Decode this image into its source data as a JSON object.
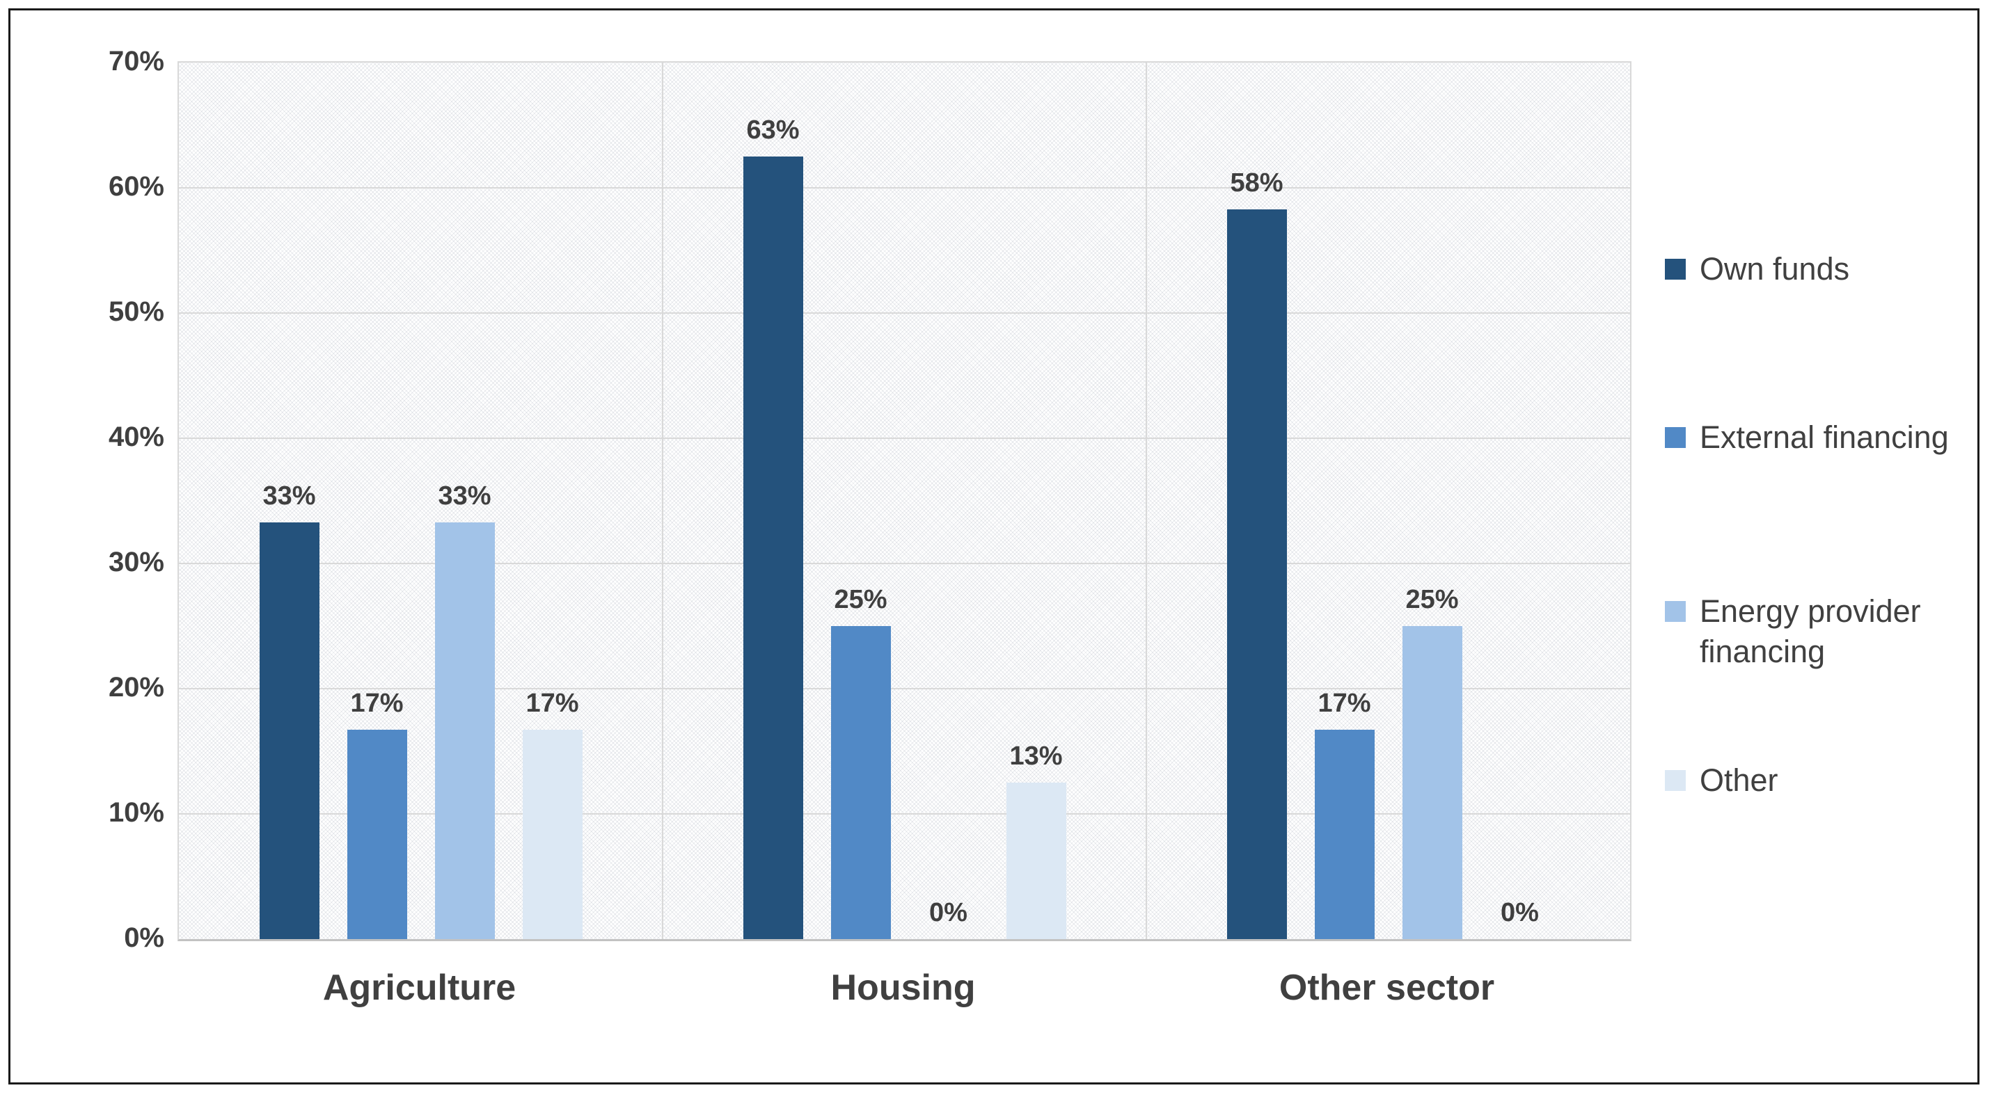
{
  "chart_data": {
    "type": "bar",
    "title": "",
    "categories": [
      "Agriculture",
      "Housing",
      "Other sector"
    ],
    "series": [
      {
        "name": "Own funds",
        "color": "#24527c",
        "values": [
          33.3,
          62.5,
          58.3
        ],
        "labels": [
          "33%",
          "63%",
          "58%"
        ]
      },
      {
        "name": "External financing",
        "color": "#5189c6",
        "values": [
          16.7,
          25.0,
          16.7
        ],
        "labels": [
          "17%",
          "25%",
          "17%"
        ]
      },
      {
        "name": "Energy provider financing",
        "color": "#a2c3e8",
        "values": [
          33.3,
          0.0,
          25.0
        ],
        "labels": [
          "33%",
          "0%",
          "25%"
        ]
      },
      {
        "name": "Other",
        "color": "#dce8f4",
        "values": [
          16.7,
          12.5,
          0.0
        ],
        "labels": [
          "17%",
          "13%",
          "0%"
        ]
      }
    ],
    "y_ticks": [
      "0%",
      "10%",
      "20%",
      "30%",
      "40%",
      "50%",
      "60%",
      "70%"
    ],
    "ylim": [
      0,
      70
    ],
    "y_tick_step": 10,
    "grid": true,
    "legend_position": "right",
    "plot_background": "diagonal-hatch"
  },
  "colors": {
    "gridline": "#d9d9d9",
    "axis_line": "#c2c2c2",
    "tick_label": "#3f3f3f",
    "data_label": "#3f3f3f",
    "category_label": "#404040",
    "legend_label": "#404040",
    "frame_border": "#1a1a1a"
  }
}
